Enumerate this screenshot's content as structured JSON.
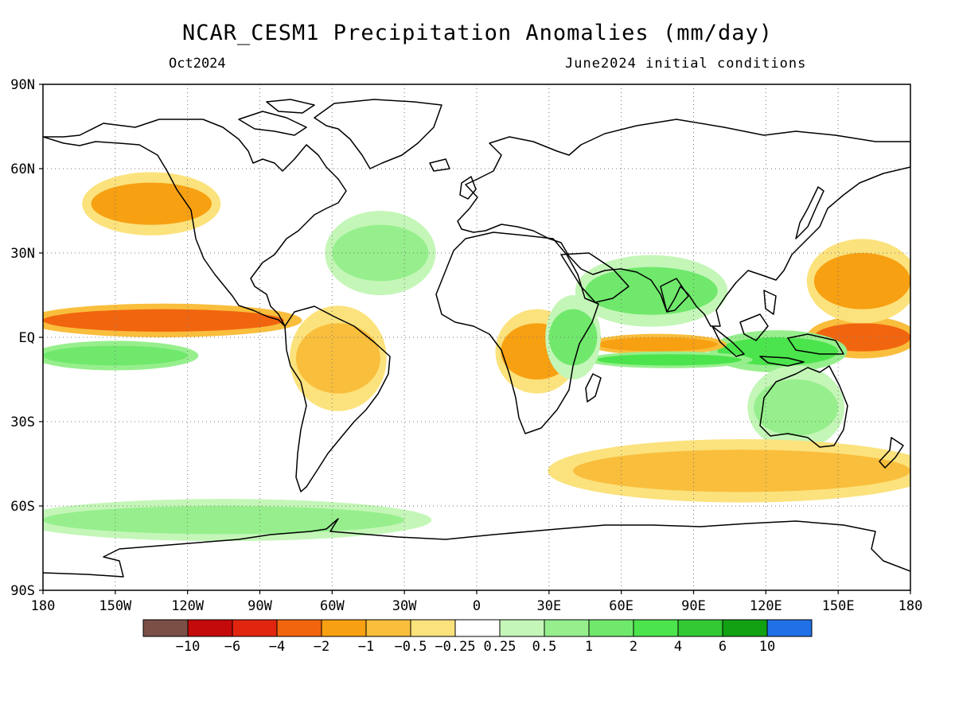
{
  "title": "NCAR_CESM1 Precipitation Anomalies (mm/day)",
  "valid_month": "Oct2024",
  "initial_conditions": "June2024 initial conditions",
  "lat_labels": [
    "90N",
    "60N",
    "30N",
    "EQ",
    "30S",
    "60S",
    "90S"
  ],
  "lon_labels": [
    "180",
    "150W",
    "120W",
    "90W",
    "60W",
    "30W",
    "0",
    "30E",
    "60E",
    "90E",
    "120E",
    "150E",
    "180"
  ],
  "colorbar": {
    "colors": [
      "#7b4f46",
      "#c40a0a",
      "#e2250f",
      "#f2650f",
      "#f7a012",
      "#f9be3c",
      "#fbe27c",
      "#ffffff",
      "#c4f6b8",
      "#96ef8c",
      "#70e86c",
      "#4be44c",
      "#33c933",
      "#12a112",
      "#2070e8"
    ],
    "labels": [
      "-10",
      "-6",
      "-4",
      "-2",
      "-1",
      "-0.5",
      "-0.25",
      "0.25",
      "0.5",
      "1",
      "2",
      "4",
      "6",
      "10"
    ]
  },
  "chart_data": {
    "type": "heatmap",
    "title": "NCAR_CESM1 Precipitation Anomalies (mm/day)",
    "subtitle_left": "Oct2024",
    "subtitle_right": "June2024 initial conditions",
    "xlim": [
      -180,
      180
    ],
    "ylim": [
      -90,
      90
    ],
    "grid": true,
    "x_ticks": [
      "180",
      "150W",
      "120W",
      "90W",
      "60W",
      "30W",
      "0",
      "30E",
      "60E",
      "90E",
      "120E",
      "150E",
      "180"
    ],
    "y_ticks": [
      "90N",
      "60N",
      "30N",
      "EQ",
      "30S",
      "60S",
      "90S"
    ],
    "color_levels": [
      -10,
      -6,
      -4,
      -2,
      -1,
      -0.5,
      -0.25,
      0.25,
      0.5,
      1,
      2,
      4,
      6,
      10
    ],
    "anomaly_regions": [
      {
        "name": "Eastern equatorial Pacific dry band",
        "lon": [
          -180,
          -80
        ],
        "lat": [
          2,
          10
        ],
        "value": -3
      },
      {
        "name": "Western Pacific dry area",
        "lon": [
          140,
          180
        ],
        "lat": [
          -5,
          5
        ],
        "value": -3
      },
      {
        "name": "Tropical South Pacific wet band",
        "lon": [
          -180,
          -120
        ],
        "lat": [
          -10,
          -3
        ],
        "value": 1.5
      },
      {
        "name": "Maritime continent wet",
        "lon": [
          100,
          150
        ],
        "lat": [
          -10,
          0
        ],
        "value": 2
      },
      {
        "name": "Indian Ocean equatorial dry",
        "lon": [
          50,
          100
        ],
        "lat": [
          -5,
          0
        ],
        "value": -2
      },
      {
        "name": "South Indian Ocean wet",
        "lon": [
          50,
          110
        ],
        "lat": [
          -10,
          -6
        ],
        "value": 2
      },
      {
        "name": "Northern Indian Ocean wet",
        "lon": [
          45,
          100
        ],
        "lat": [
          8,
          25
        ],
        "value": 1
      },
      {
        "name": "Northeast Pacific dry",
        "lon": [
          -160,
          -110
        ],
        "lat": [
          40,
          55
        ],
        "value": -1.5
      },
      {
        "name": "North Atlantic wet",
        "lon": [
          -60,
          -20
        ],
        "lat": [
          20,
          40
        ],
        "value": 0.8
      },
      {
        "name": "Amazon dry",
        "lon": [
          -75,
          -40
        ],
        "lat": [
          -20,
          5
        ],
        "value": -1
      },
      {
        "name": "Central Africa dry",
        "lon": [
          10,
          40
        ],
        "lat": [
          -15,
          5
        ],
        "value": -1.2
      },
      {
        "name": "East Africa wet",
        "lon": [
          30,
          50
        ],
        "lat": [
          -10,
          10
        ],
        "value": 1
      },
      {
        "name": "Australia wet",
        "lon": [
          115,
          150
        ],
        "lat": [
          -35,
          -15
        ],
        "value": 0.8
      },
      {
        "name": "Southern Ocean dry band",
        "lon": [
          40,
          180
        ],
        "lat": [
          -55,
          -40
        ],
        "value": -0.8
      },
      {
        "name": "Antarctic coastal wet",
        "lon": [
          -180,
          -30
        ],
        "lat": [
          -70,
          -60
        ],
        "value": 0.6
      },
      {
        "name": "Western North Pacific dry",
        "lon": [
          140,
          180
        ],
        "lat": [
          10,
          30
        ],
        "value": -1.5
      }
    ]
  }
}
